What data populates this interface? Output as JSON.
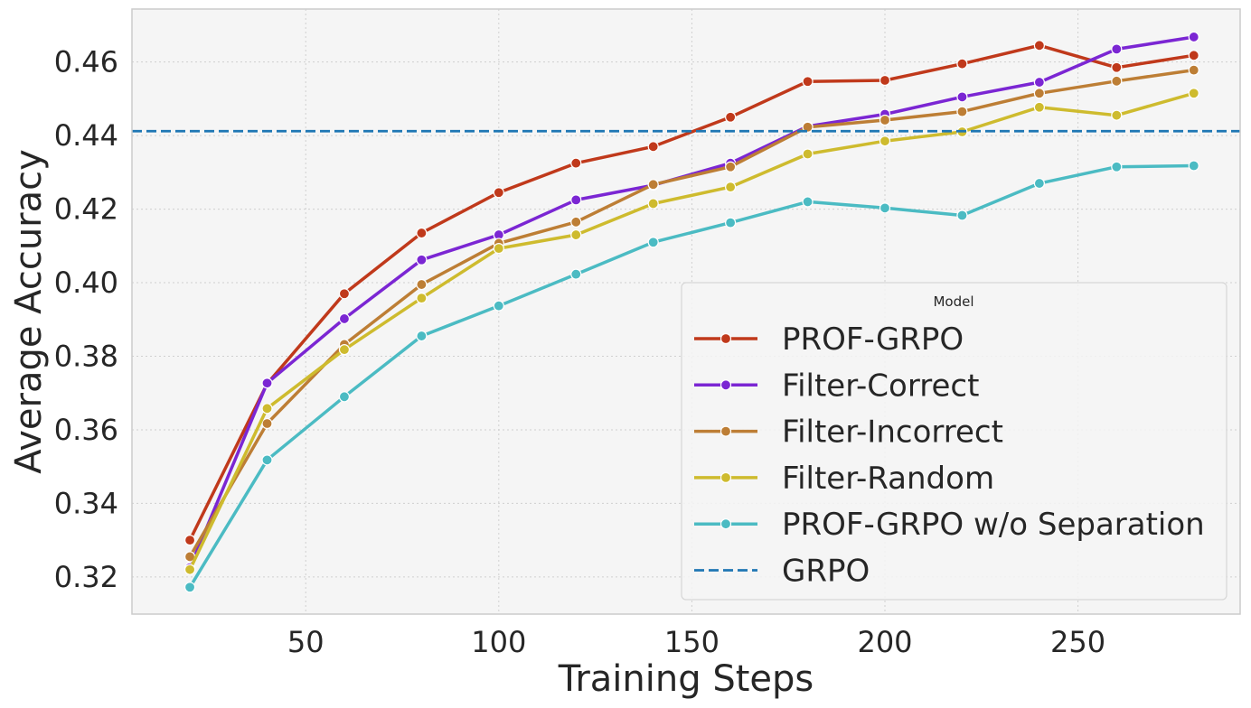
{
  "chart_data": {
    "type": "line",
    "title": "",
    "xlabel": "Training Steps",
    "ylabel": "Average Accuracy",
    "xlim": [
      5,
      292
    ],
    "ylim": [
      0.3099,
      0.4744
    ],
    "xticks": [
      50,
      100,
      150,
      200,
      250
    ],
    "yticks": [
      0.32,
      0.34,
      0.36,
      0.38,
      0.4,
      0.42,
      0.44,
      0.46
    ],
    "grid": true,
    "legend": {
      "title": "Model",
      "placement": "lower-right"
    },
    "x": [
      20,
      40,
      60,
      80,
      100,
      120,
      140,
      160,
      180,
      200,
      220,
      240,
      260,
      280
    ],
    "series": [
      {
        "name": "PROF-GRPO",
        "color": "#c0391b",
        "style": "solid-marker",
        "values": [
          0.33,
          0.3725,
          0.397,
          0.4135,
          0.4245,
          0.4325,
          0.437,
          0.445,
          0.4547,
          0.455,
          0.4595,
          0.4645,
          0.4585,
          0.4618
        ]
      },
      {
        "name": "Filter-Correct",
        "color": "#7b26d3",
        "style": "solid-marker",
        "values": [
          0.3225,
          0.3727,
          0.3902,
          0.4062,
          0.413,
          0.4225,
          0.4265,
          0.4325,
          0.4425,
          0.4458,
          0.4505,
          0.4545,
          0.4635,
          0.4668
        ]
      },
      {
        "name": "Filter-Incorrect",
        "color": "#bd7e35",
        "style": "solid-marker",
        "values": [
          0.3255,
          0.3617,
          0.3832,
          0.3995,
          0.4107,
          0.4165,
          0.4267,
          0.4315,
          0.4423,
          0.4442,
          0.4465,
          0.4515,
          0.4548,
          0.4578
        ]
      },
      {
        "name": "Filter-Random",
        "color": "#cebb2e",
        "style": "solid-marker",
        "values": [
          0.322,
          0.3658,
          0.3818,
          0.3958,
          0.4093,
          0.413,
          0.4215,
          0.426,
          0.435,
          0.4385,
          0.441,
          0.4477,
          0.4455,
          0.4515
        ]
      },
      {
        "name": "PROF-GRPO w/o Separation",
        "color": "#4bbbc3",
        "style": "solid-marker",
        "values": [
          0.3172,
          0.3518,
          0.369,
          0.3855,
          0.3937,
          0.4023,
          0.411,
          0.4163,
          0.422,
          0.4203,
          0.4183,
          0.427,
          0.4315,
          0.4318
        ]
      },
      {
        "name": "GRPO",
        "color": "#1f77b4",
        "style": "dashed-hline",
        "y": 0.4412
      }
    ]
  }
}
